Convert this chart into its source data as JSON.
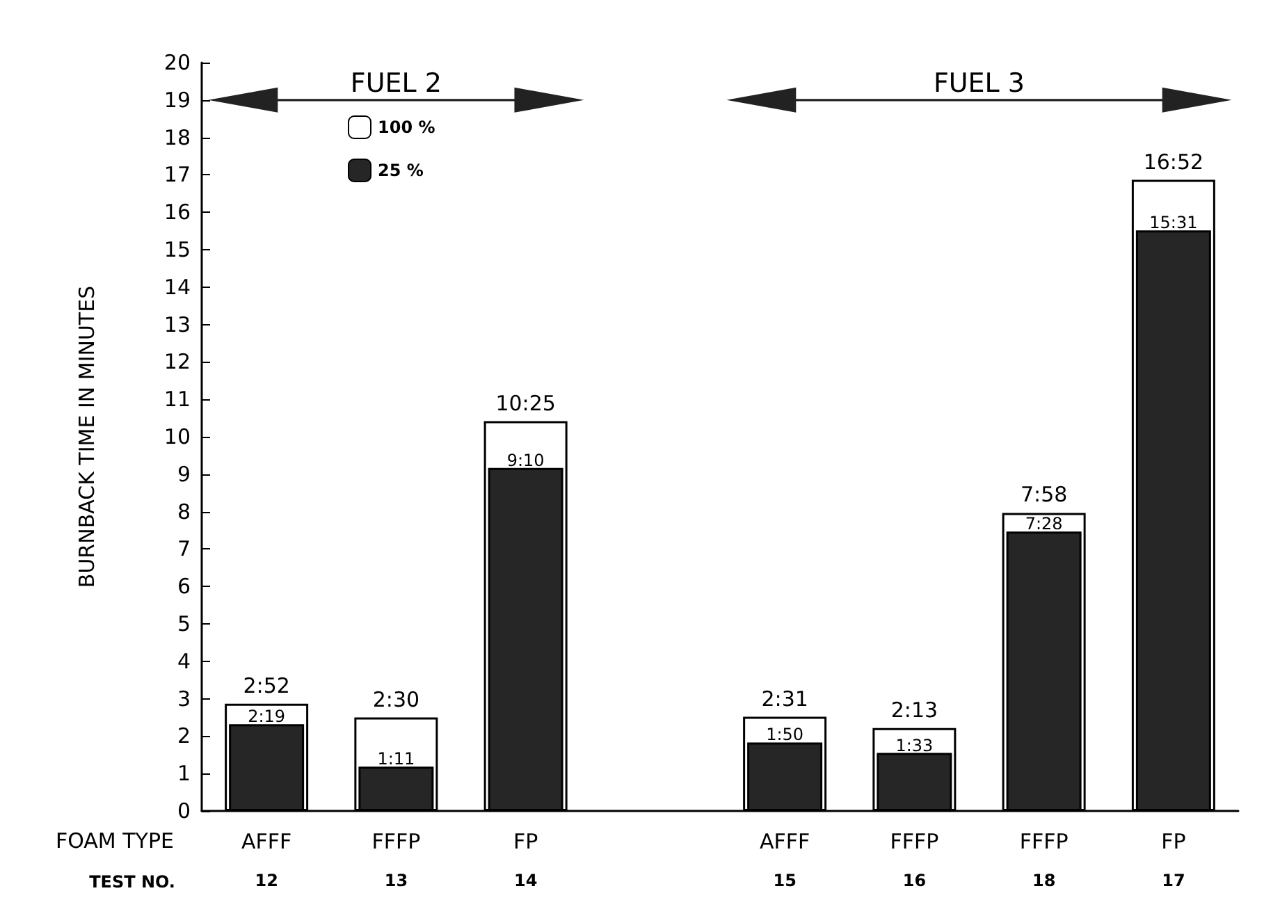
{
  "chart_data": {
    "type": "bar",
    "ylabel": "BURNBACK TIME IN MINUTES",
    "xlabel": "FOAM TYPE",
    "categories": [
      "AFFF\n12",
      "FFFP\n13",
      "FP\n14",
      null,
      "AFFF\n15",
      "FFFP\n16",
      "FFFP\n18",
      "FP\n17"
    ],
    "series": [
      {
        "name": "100 %",
        "color": "#ffffff",
        "values": [
          2.867,
          2.5,
          10.417,
          null,
          2.517,
          2.217,
          7.967,
          16.867
        ],
        "value_labels": [
          "2:52",
          "2:30",
          "10:25",
          null,
          "2:31",
          "2:13",
          "7:58",
          "16:52"
        ]
      },
      {
        "name": "25 %",
        "color": "#262626",
        "values": [
          2.317,
          1.183,
          9.167,
          null,
          1.833,
          1.55,
          7.467,
          15.517
        ],
        "value_labels": [
          "2:19",
          "1:11",
          "9:10",
          null,
          "1:50",
          "1:33",
          "7:28",
          "15:31"
        ]
      }
    ],
    "ylim": [
      0,
      20
    ],
    "yticks": [
      0,
      1,
      2,
      3,
      4,
      5,
      6,
      7,
      8,
      9,
      10,
      11,
      12,
      13,
      14,
      15,
      16,
      17,
      18,
      19,
      20
    ],
    "grid": false,
    "legend": "top left",
    "annotations": [
      "FUEL 2",
      "FUEL 3",
      "TEST NO."
    ]
  }
}
